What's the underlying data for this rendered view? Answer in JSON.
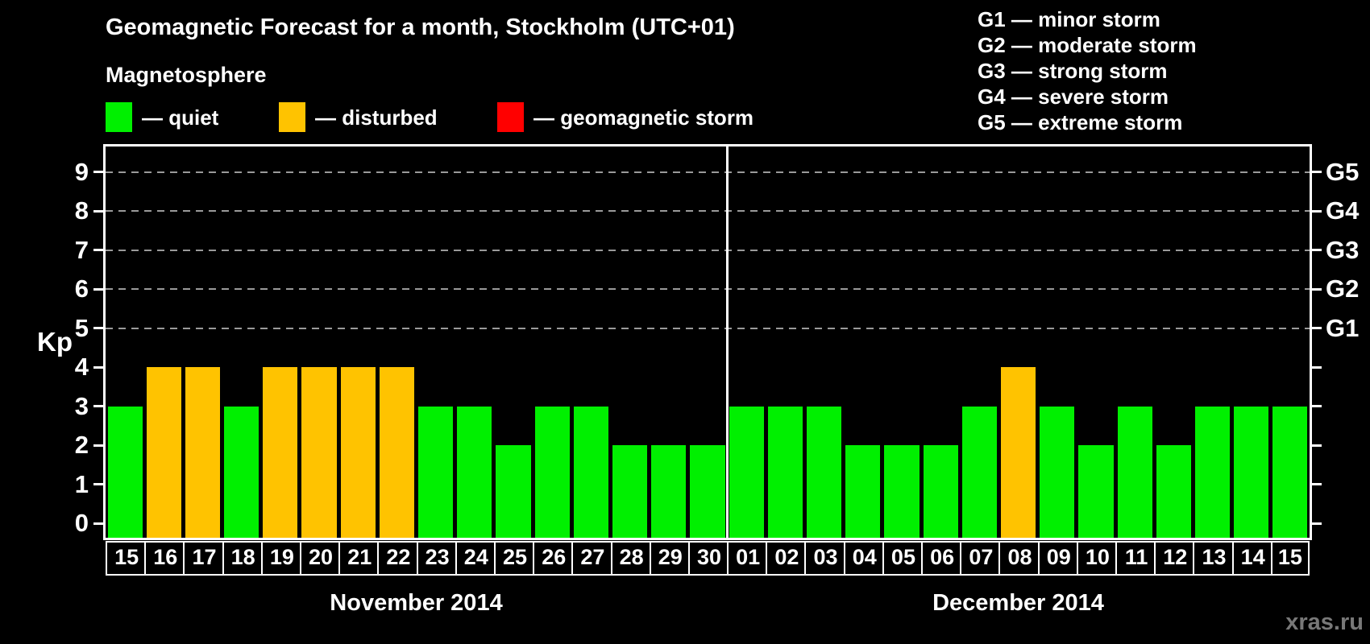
{
  "header": {
    "title": "Geomagnetic Forecast for a month, Stockholm (UTC+01)",
    "subtitle": "Magnetosphere"
  },
  "legend": {
    "items": [
      {
        "name": "quiet",
        "label": "— quiet",
        "color": "#00f000"
      },
      {
        "name": "disturbed",
        "label": "— disturbed",
        "color": "#ffc300"
      },
      {
        "name": "storm",
        "label": "— geomagnetic storm",
        "color": "#ff0000"
      }
    ]
  },
  "g_scale_legend": {
    "lines": [
      "G1 — minor storm",
      "G2 — moderate storm",
      "G3 — strong storm",
      "G4 — severe storm",
      "G5 — extreme storm"
    ]
  },
  "y_axis": {
    "label": "Kp",
    "ticks": [
      0,
      1,
      2,
      3,
      4,
      5,
      6,
      7,
      8,
      9
    ]
  },
  "watermark": "xras.ru",
  "chart_data": {
    "type": "bar",
    "title": "Geomagnetic Forecast for a month, Stockholm (UTC+01)",
    "ylabel": "Kp",
    "ylim": [
      0,
      9
    ],
    "grid": "dashed horizontal at Kp 5-9 only",
    "legend_position": "top-left swatches; G-scale list top-right",
    "categories": [
      "15",
      "16",
      "17",
      "18",
      "19",
      "20",
      "21",
      "22",
      "23",
      "24",
      "25",
      "26",
      "27",
      "28",
      "29",
      "30",
      "01",
      "02",
      "03",
      "04",
      "05",
      "06",
      "07",
      "08",
      "09",
      "10",
      "11",
      "12",
      "13",
      "14",
      "15"
    ],
    "values": [
      3,
      4,
      4,
      3,
      4,
      4,
      4,
      4,
      3,
      3,
      2,
      3,
      3,
      2,
      2,
      2,
      3,
      3,
      3,
      2,
      2,
      2,
      3,
      4,
      3,
      2,
      3,
      2,
      3,
      3,
      3
    ],
    "status": [
      "quiet",
      "disturbed",
      "disturbed",
      "quiet",
      "disturbed",
      "disturbed",
      "disturbed",
      "disturbed",
      "quiet",
      "quiet",
      "quiet",
      "quiet",
      "quiet",
      "quiet",
      "quiet",
      "quiet",
      "quiet",
      "quiet",
      "quiet",
      "quiet",
      "quiet",
      "quiet",
      "quiet",
      "disturbed",
      "quiet",
      "quiet",
      "quiet",
      "quiet",
      "quiet",
      "quiet",
      "quiet"
    ],
    "status_colors": {
      "quiet": "#00f000",
      "disturbed": "#ffc300",
      "storm": "#ff0000"
    },
    "months": [
      {
        "label": "November 2014",
        "count": 16
      },
      {
        "label": "December 2014",
        "count": 15
      }
    ],
    "gridlines_at_kp": [
      5,
      6,
      7,
      8,
      9
    ],
    "right_axis_labels": [
      {
        "kp": 5,
        "label": "G1"
      },
      {
        "kp": 6,
        "label": "G2"
      },
      {
        "kp": 7,
        "label": "G3"
      },
      {
        "kp": 8,
        "label": "G4"
      },
      {
        "kp": 9,
        "label": "G5"
      }
    ]
  }
}
